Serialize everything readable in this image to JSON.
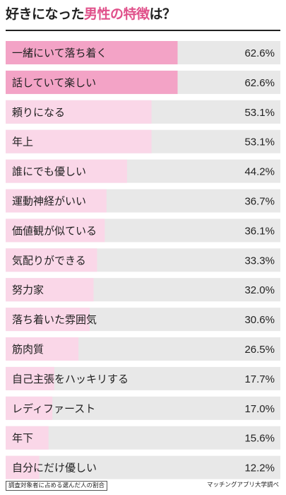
{
  "title": {
    "pre": "好きになった",
    "highlight": "男性の特徴",
    "post": "は？"
  },
  "footer": {
    "note": "調査対象者に占める選んだ人の割合",
    "source": "マッチングアプリ大学調べ"
  },
  "colors": {
    "highlight": "#e0508a",
    "bar_top": "#f3a3c6",
    "bar_other": "#fad7e8",
    "track": "#e8e8e8",
    "text": "#222222"
  },
  "chart_data": {
    "type": "bar",
    "orientation": "horizontal",
    "xlim": [
      0,
      100
    ],
    "categories": [
      "一緒にいて落ち着く",
      "話していて楽しい",
      "頼りになる",
      "年上",
      "誰にでも優しい",
      "運動神経がいい",
      "価値観が似ている",
      "気配りができる",
      "努力家",
      "落ち着いた雰囲気",
      "筋肉質",
      "自己主張をハッキリする",
      "レディファースト",
      "年下",
      "自分にだけ優しい"
    ],
    "values": [
      62.6,
      62.6,
      53.1,
      53.1,
      44.2,
      36.7,
      36.1,
      33.3,
      32.0,
      30.6,
      26.5,
      17.7,
      17.0,
      15.6,
      12.2
    ],
    "value_labels": [
      "62.6%",
      "62.6%",
      "53.1%",
      "53.1%",
      "44.2%",
      "36.7%",
      "36.1%",
      "33.3%",
      "32.0%",
      "30.6%",
      "26.5%",
      "17.7%",
      "17.0%",
      "15.6%",
      "12.2%"
    ],
    "highlighted_count": 2
  }
}
